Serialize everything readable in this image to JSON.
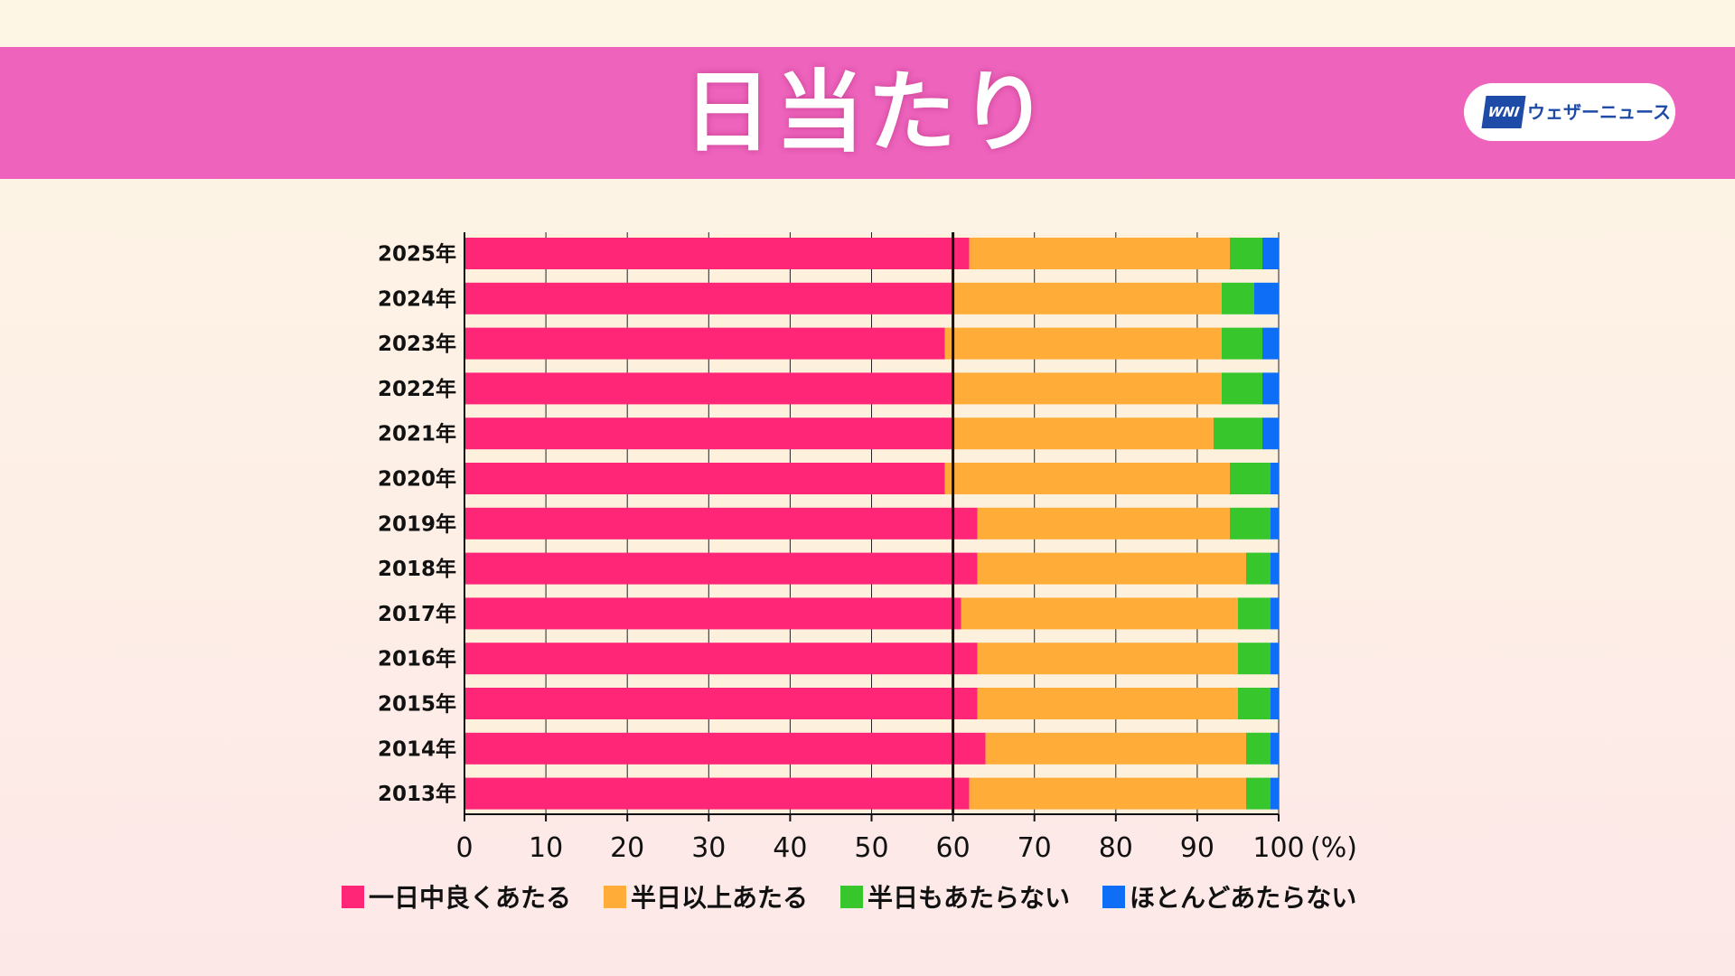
{
  "header": {
    "title": "日当たり",
    "logo_mark": "WNI",
    "logo_text": "ウェザーニュース"
  },
  "colors": {
    "header_bg": "#ee64bd",
    "series": [
      "#ff2577",
      "#ffad38",
      "#38c62d",
      "#0e6ef5"
    ]
  },
  "chart_data": {
    "type": "bar",
    "orientation": "horizontal",
    "stacked": true,
    "categories": [
      "2025年",
      "2024年",
      "2023年",
      "2022年",
      "2021年",
      "2020年",
      "2019年",
      "2018年",
      "2017年",
      "2016年",
      "2015年",
      "2014年",
      "2013年"
    ],
    "series": [
      {
        "name": "一日中良くあたる",
        "color": "#ff2577",
        "values": [
          62,
          60,
          59,
          60,
          60,
          59,
          63,
          63,
          61,
          63,
          63,
          64,
          62
        ]
      },
      {
        "name": "半日以上あたる",
        "color": "#ffad38",
        "values": [
          32,
          33,
          34,
          33,
          32,
          35,
          31,
          33,
          34,
          32,
          32,
          32,
          34
        ]
      },
      {
        "name": "半日もあたらない",
        "color": "#38c62d",
        "values": [
          4,
          4,
          5,
          5,
          6,
          5,
          5,
          3,
          4,
          4,
          4,
          3,
          3
        ]
      },
      {
        "name": "ほとんどあたらない",
        "color": "#0e6ef5",
        "values": [
          2,
          3,
          2,
          2,
          2,
          1,
          1,
          1,
          1,
          1,
          1,
          1,
          1
        ]
      }
    ],
    "x_ticks": [
      "0",
      "10",
      "20",
      "30",
      "40",
      "50",
      "60",
      "70",
      "80",
      "90",
      "100"
    ],
    "x_unit": "(%)",
    "xlim": [
      0,
      100
    ],
    "reference_line": 60,
    "grid": true,
    "legend_position": "bottom"
  }
}
